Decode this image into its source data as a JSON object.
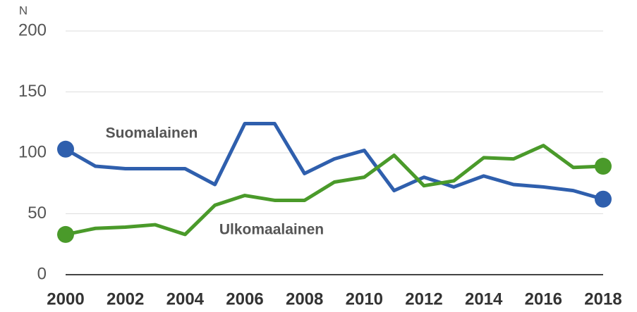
{
  "chart_data": {
    "type": "line",
    "ylabel": "N",
    "x": [
      2000,
      2001,
      2002,
      2003,
      2004,
      2005,
      2006,
      2007,
      2008,
      2009,
      2010,
      2011,
      2012,
      2013,
      2014,
      2015,
      2016,
      2017,
      2018
    ],
    "xlim": [
      2000,
      2018
    ],
    "xticks": [
      2000,
      2002,
      2004,
      2006,
      2008,
      2010,
      2012,
      2014,
      2016,
      2018
    ],
    "ylim": [
      0,
      200
    ],
    "yticks": [
      0,
      50,
      100,
      150,
      200
    ],
    "grid": true,
    "series": [
      {
        "name": "Suomalainen",
        "color": "#2f5fad",
        "values": [
          103,
          89,
          87,
          87,
          87,
          74,
          124,
          124,
          83,
          95,
          102,
          69,
          80,
          72,
          81,
          74,
          72,
          69,
          62
        ]
      },
      {
        "name": "Ulkomaalainen",
        "color": "#4a9a2a",
        "values": [
          33,
          38,
          39,
          41,
          33,
          57,
          65,
          61,
          61,
          76,
          80,
          98,
          73,
          77,
          96,
          95,
          106,
          88,
          89
        ]
      }
    ]
  }
}
